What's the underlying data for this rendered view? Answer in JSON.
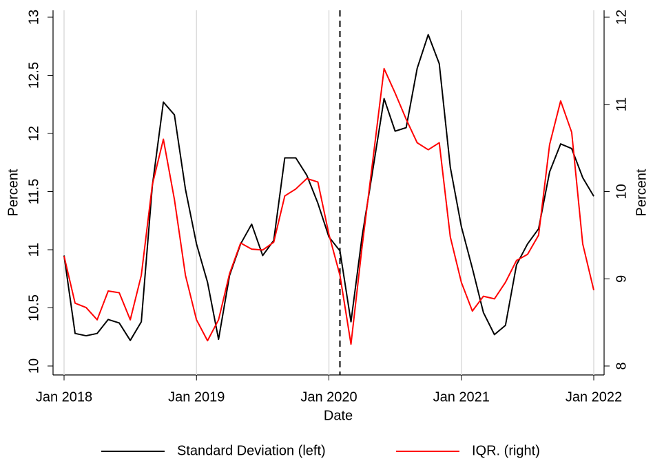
{
  "chart_data": {
    "type": "line",
    "x": [
      "2018-01",
      "2018-02",
      "2018-03",
      "2018-04",
      "2018-05",
      "2018-06",
      "2018-07",
      "2018-08",
      "2018-09",
      "2018-10",
      "2018-11",
      "2018-12",
      "2019-01",
      "2019-02",
      "2019-03",
      "2019-04",
      "2019-05",
      "2019-06",
      "2019-07",
      "2019-08",
      "2019-09",
      "2019-10",
      "2019-11",
      "2019-12",
      "2020-01",
      "2020-02",
      "2020-03",
      "2020-04",
      "2020-05",
      "2020-06",
      "2020-07",
      "2020-08",
      "2020-09",
      "2020-10",
      "2020-11",
      "2020-12",
      "2021-01",
      "2021-02",
      "2021-03",
      "2021-04",
      "2021-05",
      "2021-06",
      "2021-07",
      "2021-08",
      "2021-09",
      "2021-10",
      "2021-11",
      "2021-12",
      "2022-01"
    ],
    "x_label": "Date",
    "y_label": "Percent",
    "y2_label": "Percent",
    "series": [
      {
        "name": "Standard Deviation (left)",
        "color": "#000000",
        "axis": "y",
        "values": [
          10.95,
          10.28,
          10.26,
          10.28,
          10.4,
          10.37,
          10.22,
          10.38,
          11.55,
          12.27,
          12.16,
          11.52,
          11.05,
          10.72,
          10.23,
          10.78,
          11.05,
          11.22,
          10.95,
          11.08,
          11.79,
          11.79,
          11.64,
          11.4,
          11.11,
          10.99,
          10.38,
          11.11,
          11.7,
          12.3,
          12.02,
          12.05,
          12.56,
          12.85,
          12.6,
          11.71,
          11.2,
          10.84,
          10.46,
          10.27,
          10.35,
          10.87,
          11.05,
          11.18,
          11.67,
          11.91,
          11.87,
          11.62,
          11.46
        ]
      },
      {
        "name": "IQR. (right)",
        "color": "#ff0000",
        "axis": "y2",
        "values": [
          9.26,
          8.72,
          8.67,
          8.53,
          8.86,
          8.84,
          8.53,
          9.04,
          10.08,
          10.6,
          9.91,
          9.04,
          8.53,
          8.29,
          8.53,
          9.06,
          9.41,
          9.34,
          9.33,
          9.42,
          9.95,
          10.03,
          10.15,
          10.11,
          9.51,
          9.04,
          8.25,
          9.36,
          10.38,
          11.41,
          11.13,
          10.83,
          10.56,
          10.48,
          10.56,
          9.48,
          8.96,
          8.63,
          8.8,
          8.77,
          8.96,
          9.21,
          9.28,
          9.5,
          10.54,
          11.04,
          10.68,
          9.4,
          8.87
        ]
      }
    ],
    "xticks": [
      {
        "value": "2018-01",
        "label": "Jan 2018"
      },
      {
        "value": "2019-01",
        "label": "Jan 2019"
      },
      {
        "value": "2020-01",
        "label": "Jan 2020"
      },
      {
        "value": "2021-01",
        "label": "Jan 2021"
      },
      {
        "value": "2022-01",
        "label": "Jan 2022"
      }
    ],
    "ylim": [
      10,
      13
    ],
    "yticks": [
      10,
      10.5,
      11,
      11.5,
      12,
      12.5,
      13
    ],
    "y2lim": [
      8,
      12
    ],
    "y2ticks": [
      8,
      9,
      10,
      11,
      12
    ],
    "vline": "2020-02",
    "grid": true,
    "legend": "bottom"
  }
}
